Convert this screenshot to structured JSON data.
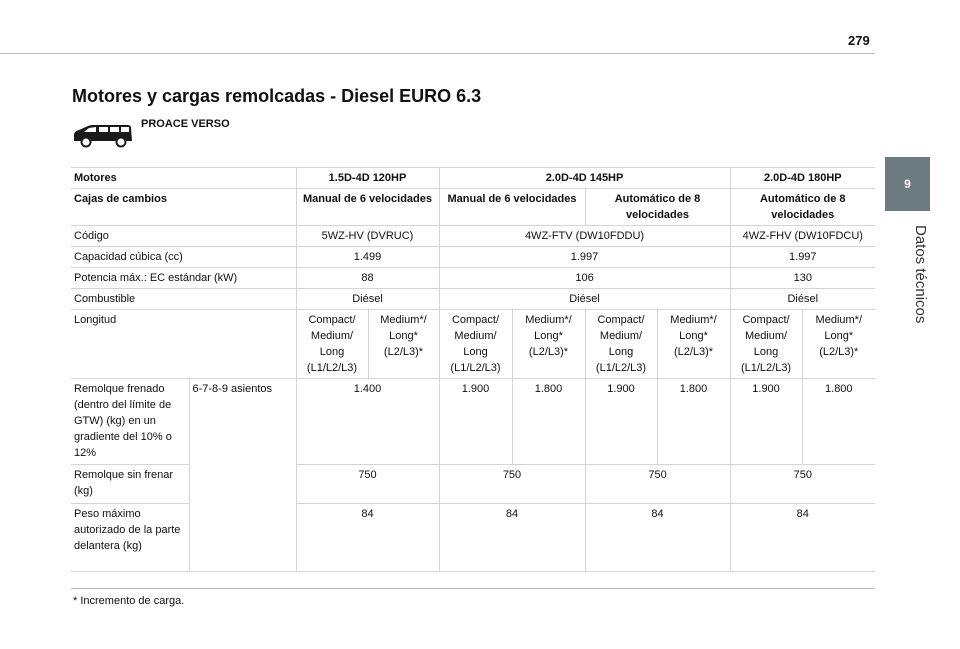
{
  "page_number": "279",
  "section": {
    "number": "9",
    "label": "Datos técnicos"
  },
  "title": "Motores y cargas remolcadas - Diesel EURO 6.3",
  "vehicle": {
    "name": "PROACE VERSO",
    "icon": "van-icon"
  },
  "table": {
    "motores_label": "Motores",
    "engines": [
      "1.5D-4D 120HP",
      "2.0D-4D 145HP",
      "2.0D-4D 180HP"
    ],
    "gearbox_label": "Cajas de cambios",
    "gearboxes": [
      "Manual de 6 velocidades",
      "Manual de 6 velocidades",
      "Automático de 8 velocidades",
      "Automático de 8 velocidades"
    ],
    "code_label": "Código",
    "codes": [
      "5WZ-HV (DVRUC)",
      "4WZ-FTV (DW10FDDU)",
      "4WZ-FHV (DW10FDCU)"
    ],
    "capacity_label": "Capacidad cúbica (cc)",
    "capacities": [
      "1.499",
      "1.997",
      "1.997"
    ],
    "power_label": "Potencia máx.: EC estándar (kW)",
    "powers": [
      "88",
      "106",
      "130"
    ],
    "fuel_label": "Combustible",
    "fuels": [
      "Diésel",
      "Diésel",
      "Diésel"
    ],
    "length_label": "Longitud",
    "lengths": [
      "Compact/ Medium/ Long (L1/L2/L3)",
      "Medium*/ Long* (L2/L3)*",
      "Compact/ Medium/ Long (L1/L2/L3)",
      "Medium*/ Long* (L2/L3)*",
      "Compact/ Medium/ Long (L1/L2/L3)",
      "Medium*/ Long* (L2/L3)*",
      "Compact/ Medium/ Long (L1/L2/L3)",
      "Medium*/ Long* (L2/L3)*"
    ],
    "seats_label": "6-7-8-9 asientos",
    "braked_label": "Remolque frenado (dentro del límite de GTW) (kg) en un gradiente del 10% o 12%",
    "braked_values": [
      "1.400",
      "1.900",
      "1.800",
      "1.900",
      "1.800",
      "1.900",
      "1.800"
    ],
    "unbraked_label": "Remolque sin frenar (kg)",
    "unbraked_values": [
      "750",
      "750",
      "750",
      "750"
    ],
    "nose_label": "Peso máximo autorizado de la parte delantera (kg)",
    "nose_values": [
      "84",
      "84",
      "84",
      "84"
    ]
  },
  "footnote": "*  Incremento de carga."
}
